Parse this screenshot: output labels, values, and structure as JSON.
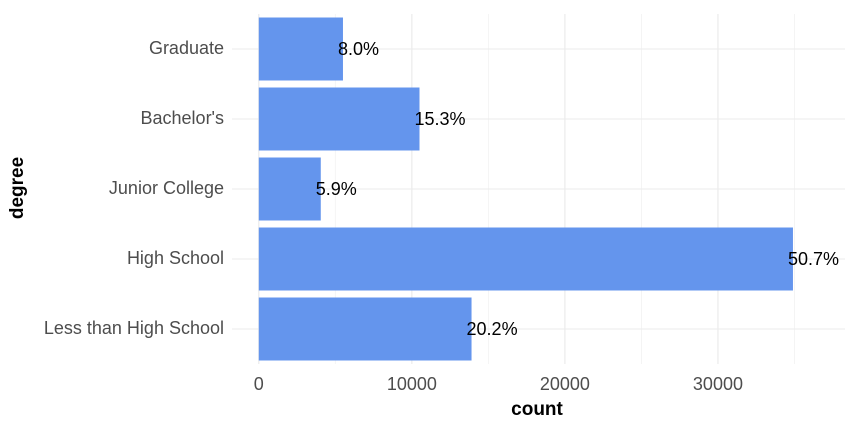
{
  "chart_data": {
    "type": "bar",
    "orientation": "horizontal",
    "x_label": "count",
    "y_label": "degree",
    "categories": [
      "Less than High School",
      "High School",
      "Junior College",
      "Bachelor's",
      "Graduate"
    ],
    "values": [
      13900,
      34900,
      4050,
      10500,
      5500
    ],
    "value_labels": [
      "20.2%",
      "50.7%",
      "5.9%",
      "15.3%",
      "8.0%"
    ],
    "color": "#6495ed",
    "xlim": [
      -1750,
      38300
    ],
    "xticks": [
      0,
      10000,
      20000,
      30000
    ],
    "minor_xticks": [
      5000,
      15000,
      25000,
      35000
    ],
    "grid": true
  }
}
